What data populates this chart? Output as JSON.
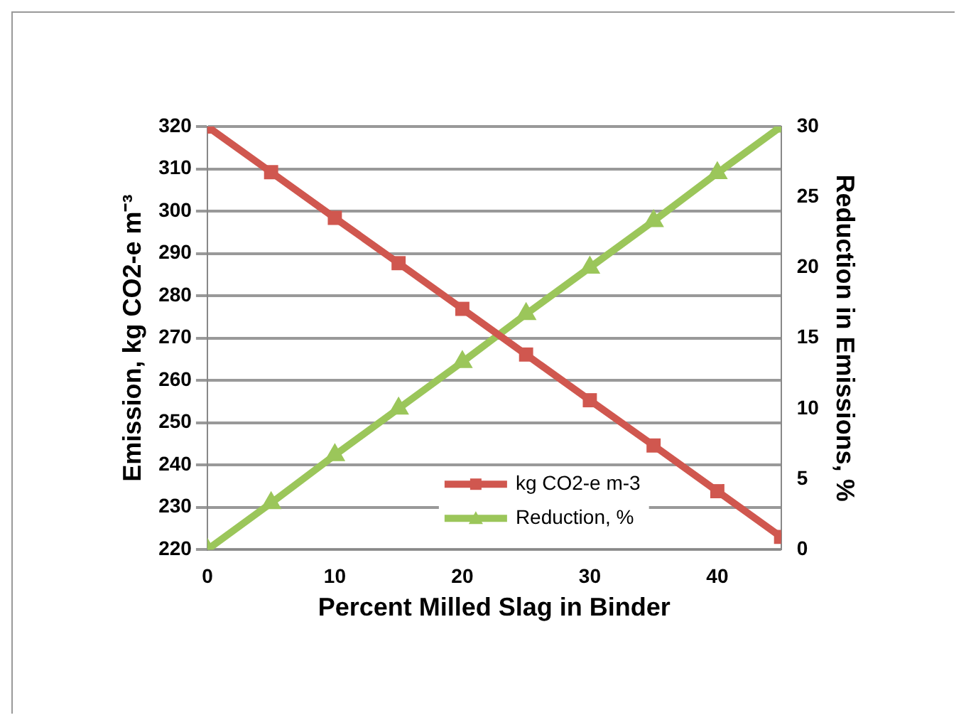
{
  "chart_data": {
    "type": "line",
    "xlabel": "Percent Milled Slag in Binder",
    "ylabel": "Emission, kg CO2-e m⁻³",
    "y2label": "Reduction in Emissions, %",
    "x": [
      0,
      5,
      10,
      15,
      20,
      25,
      30,
      35,
      40,
      45
    ],
    "series": [
      {
        "name": "kg CO2-e m-3",
        "color": "#d0574f",
        "marker": "square",
        "values": [
          320,
          309.2,
          298.4,
          287.7,
          276.9,
          266.1,
          255.3,
          244.6,
          233.8,
          223
        ]
      },
      {
        "name": "Reduction, %",
        "color": "#9bc65a",
        "marker": "triangle",
        "axis": "y2",
        "values": [
          0,
          3.3,
          6.7,
          10,
          13.3,
          16.7,
          20,
          23.3,
          26.7,
          30
        ]
      }
    ],
    "xlim": [
      0,
      45
    ],
    "xticks": [
      0,
      10,
      20,
      30,
      40
    ],
    "ylim": [
      220,
      320
    ],
    "yticks": [
      220,
      230,
      240,
      250,
      260,
      270,
      280,
      290,
      300,
      310,
      320
    ],
    "y2lim": [
      0,
      30
    ],
    "y2ticks": [
      0,
      5,
      10,
      15,
      20,
      25,
      30
    ],
    "grid": "y",
    "legend": "bottom",
    "line_style": "solid"
  }
}
